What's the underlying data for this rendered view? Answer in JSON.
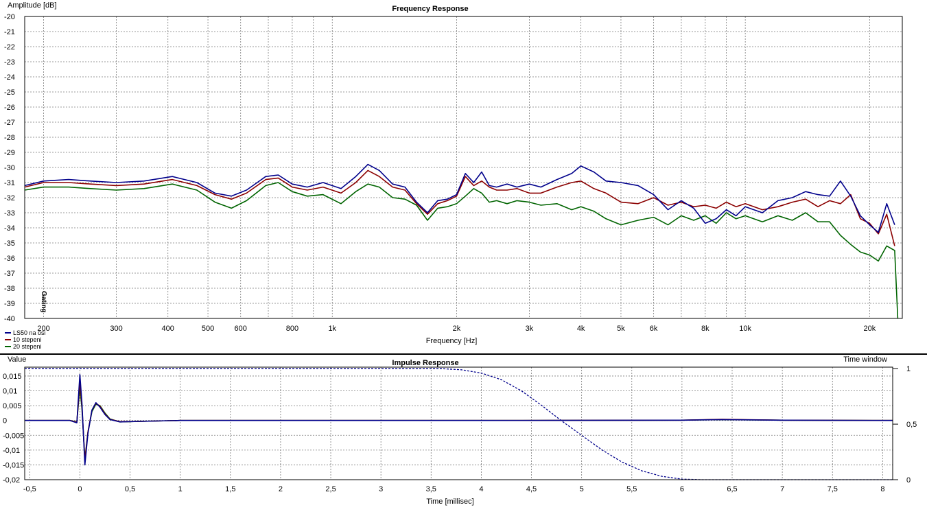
{
  "chart_data": [
    {
      "type": "line",
      "title": "Frequency Response",
      "ylabel": "Amplitude [dB]",
      "xlabel": "Frequency [Hz]",
      "xscale": "log",
      "xlim": [
        180,
        24000
      ],
      "ylim": [
        -40,
        -20
      ],
      "yticks": [
        "-20",
        "-21",
        "-22",
        "-23",
        "-24",
        "-25",
        "-26",
        "-27",
        "-28",
        "-29",
        "-30",
        "-31",
        "-32",
        "-33",
        "-34",
        "-35",
        "-36",
        "-37",
        "-38",
        "-39",
        "-40"
      ],
      "xticks": [
        {
          "v": 200,
          "t": "200"
        },
        {
          "v": 300,
          "t": "300"
        },
        {
          "v": 400,
          "t": "400"
        },
        {
          "v": 500,
          "t": "500"
        },
        {
          "v": 600,
          "t": "600"
        },
        {
          "v": 800,
          "t": "800"
        },
        {
          "v": 1000,
          "t": "1k"
        },
        {
          "v": 2000,
          "t": "2k"
        },
        {
          "v": 3000,
          "t": "3k"
        },
        {
          "v": 4000,
          "t": "4k"
        },
        {
          "v": 5000,
          "t": "5k"
        },
        {
          "v": 6000,
          "t": "6k"
        },
        {
          "v": 8000,
          "t": "8k"
        },
        {
          "v": 10000,
          "t": "10k"
        },
        {
          "v": 20000,
          "t": "20k"
        }
      ],
      "grid": true,
      "legend_position": "bottom-left",
      "gating_label": "Gating",
      "series": [
        {
          "name": "LS50 na osi",
          "color": "#00008b",
          "x": [
            180,
            200,
            230,
            260,
            300,
            350,
            410,
            470,
            520,
            570,
            620,
            690,
            740,
            800,
            870,
            950,
            1050,
            1140,
            1220,
            1300,
            1400,
            1500,
            1600,
            1700,
            1800,
            1900,
            2000,
            2100,
            2200,
            2300,
            2400,
            2500,
            2650,
            2800,
            3000,
            3200,
            3500,
            3800,
            4000,
            4300,
            4600,
            5000,
            5500,
            6000,
            6500,
            7000,
            7500,
            8000,
            8500,
            9000,
            9500,
            10000,
            11000,
            12000,
            13000,
            14000,
            15000,
            16000,
            17000,
            18000,
            19000,
            20000,
            21000,
            22000,
            23000
          ],
          "y": [
            -31.2,
            -30.9,
            -30.8,
            -30.9,
            -31.0,
            -30.9,
            -30.6,
            -31.0,
            -31.7,
            -31.9,
            -31.5,
            -30.6,
            -30.5,
            -31.1,
            -31.3,
            -31.0,
            -31.4,
            -30.6,
            -29.8,
            -30.2,
            -31.1,
            -31.3,
            -32.3,
            -33.0,
            -32.2,
            -32.1,
            -31.8,
            -30.4,
            -31.0,
            -30.3,
            -31.2,
            -31.3,
            -31.1,
            -31.3,
            -31.1,
            -31.3,
            -30.8,
            -30.4,
            -29.9,
            -30.3,
            -30.9,
            -31.0,
            -31.2,
            -31.8,
            -32.8,
            -32.2,
            -32.7,
            -33.7,
            -33.4,
            -32.8,
            -33.2,
            -32.6,
            -33.0,
            -32.2,
            -32.0,
            -31.6,
            -31.8,
            -31.9,
            -30.9,
            -31.9,
            -33.2,
            -33.8,
            -34.3,
            -32.4,
            -33.8
          ]
        },
        {
          "name": "10 stepeni",
          "color": "#8b0000",
          "x": [
            180,
            200,
            230,
            260,
            300,
            350,
            410,
            470,
            520,
            570,
            620,
            690,
            740,
            800,
            870,
            950,
            1050,
            1140,
            1220,
            1300,
            1400,
            1500,
            1600,
            1700,
            1800,
            1900,
            2000,
            2100,
            2200,
            2300,
            2400,
            2500,
            2650,
            2800,
            3000,
            3200,
            3500,
            3800,
            4000,
            4300,
            4600,
            5000,
            5500,
            6000,
            6500,
            7000,
            7500,
            8000,
            8500,
            9000,
            9500,
            10000,
            11000,
            12000,
            13000,
            14000,
            15000,
            16000,
            17000,
            18000,
            19000,
            20000,
            21000,
            22000,
            23000
          ],
          "y": [
            -31.3,
            -31.0,
            -31.0,
            -31.1,
            -31.2,
            -31.1,
            -30.8,
            -31.2,
            -31.8,
            -32.1,
            -31.7,
            -30.8,
            -30.7,
            -31.3,
            -31.5,
            -31.3,
            -31.7,
            -31.0,
            -30.2,
            -30.6,
            -31.3,
            -31.5,
            -32.4,
            -33.1,
            -32.4,
            -32.2,
            -31.9,
            -30.6,
            -31.2,
            -30.9,
            -31.3,
            -31.5,
            -31.5,
            -31.4,
            -31.7,
            -31.7,
            -31.3,
            -31.0,
            -30.9,
            -31.4,
            -31.7,
            -32.3,
            -32.4,
            -32.0,
            -32.5,
            -32.3,
            -32.6,
            -32.5,
            -32.7,
            -32.3,
            -32.6,
            -32.4,
            -32.8,
            -32.6,
            -32.3,
            -32.1,
            -32.6,
            -32.2,
            -32.4,
            -31.8,
            -33.4,
            -33.7,
            -34.4,
            -33.1,
            -35.2
          ]
        },
        {
          "name": "20 stepeni",
          "color": "#006400",
          "x": [
            180,
            200,
            230,
            260,
            300,
            350,
            410,
            470,
            520,
            570,
            620,
            690,
            740,
            800,
            870,
            950,
            1050,
            1140,
            1220,
            1300,
            1400,
            1500,
            1600,
            1700,
            1800,
            1900,
            2000,
            2100,
            2200,
            2300,
            2400,
            2500,
            2650,
            2800,
            3000,
            3200,
            3500,
            3800,
            4000,
            4300,
            4600,
            5000,
            5500,
            6000,
            6500,
            7000,
            7500,
            8000,
            8500,
            9000,
            9500,
            10000,
            11000,
            12000,
            13000,
            14000,
            15000,
            16000,
            17000,
            18000,
            19000,
            20000,
            21000,
            22000,
            23000,
            23400
          ],
          "y": [
            -31.5,
            -31.3,
            -31.3,
            -31.4,
            -31.5,
            -31.4,
            -31.1,
            -31.5,
            -32.3,
            -32.7,
            -32.2,
            -31.2,
            -31.0,
            -31.6,
            -31.9,
            -31.8,
            -32.4,
            -31.6,
            -31.1,
            -31.3,
            -32.0,
            -32.1,
            -32.5,
            -33.5,
            -32.7,
            -32.6,
            -32.4,
            -31.9,
            -31.4,
            -31.7,
            -32.3,
            -32.2,
            -32.4,
            -32.2,
            -32.3,
            -32.5,
            -32.4,
            -32.8,
            -32.6,
            -32.9,
            -33.4,
            -33.8,
            -33.5,
            -33.3,
            -33.8,
            -33.2,
            -33.5,
            -33.2,
            -33.7,
            -33.0,
            -33.4,
            -33.2,
            -33.6,
            -33.2,
            -33.5,
            -33.0,
            -33.6,
            -33.6,
            -34.5,
            -35.1,
            -35.6,
            -35.8,
            -36.2,
            -35.2,
            -35.5,
            -40.0
          ]
        }
      ]
    },
    {
      "type": "line",
      "title": "Impulse Response",
      "ylabel": "Value",
      "y2label": "Time window",
      "xlabel": "Time [millisec]",
      "xlim": [
        -0.55,
        8.1
      ],
      "ylim": [
        -0.02,
        0.018
      ],
      "y2lim": [
        0,
        1
      ],
      "xticks": [
        {
          "v": -0.5,
          "t": "-0,5"
        },
        {
          "v": 0,
          "t": "0"
        },
        {
          "v": 0.5,
          "t": "0,5"
        },
        {
          "v": 1,
          "t": "1"
        },
        {
          "v": 1.5,
          "t": "1,5"
        },
        {
          "v": 2,
          "t": "2"
        },
        {
          "v": 2.5,
          "t": "2,5"
        },
        {
          "v": 3,
          "t": "3"
        },
        {
          "v": 3.5,
          "t": "3,5"
        },
        {
          "v": 4,
          "t": "4"
        },
        {
          "v": 4.5,
          "t": "4,5"
        },
        {
          "v": 5,
          "t": "5"
        },
        {
          "v": 5.5,
          "t": "5,5"
        },
        {
          "v": 6,
          "t": "6"
        },
        {
          "v": 6.5,
          "t": "6,5"
        },
        {
          "v": 7,
          "t": "7"
        },
        {
          "v": 7.5,
          "t": "7,5"
        },
        {
          "v": 8,
          "t": "8"
        }
      ],
      "yticks": [
        {
          "v": 0.015,
          "t": "0,015"
        },
        {
          "v": 0.01,
          "t": "0,01"
        },
        {
          "v": 0.005,
          "t": "0,005"
        },
        {
          "v": 0,
          "t": "0"
        },
        {
          "v": -0.005,
          "t": "-0,005"
        },
        {
          "v": -0.01,
          "t": "-0,01"
        },
        {
          "v": -0.015,
          "t": "-0,015"
        },
        {
          "v": -0.02,
          "t": "-0,02"
        }
      ],
      "y2ticks": [
        {
          "v": 1,
          "t": "1"
        },
        {
          "v": 0.5,
          "t": "0,5"
        },
        {
          "v": 0,
          "t": "0"
        }
      ],
      "grid": true,
      "series": [
        {
          "name": "20 stepeni",
          "color": "#006400",
          "x": [
            -0.55,
            -0.1,
            -0.03,
            0.0,
            0.02,
            0.05,
            0.08,
            0.12,
            0.16,
            0.2,
            0.25,
            0.3,
            0.4,
            0.6,
            1.0,
            2.0,
            4.0,
            6.0,
            6.4,
            7.0,
            8.1
          ],
          "y": [
            0,
            0,
            -0.0005,
            0.011,
            0.004,
            -0.013,
            -0.004,
            0.003,
            0.0055,
            0.005,
            0.0025,
            0.0005,
            -0.0005,
            -0.0003,
            0,
            0,
            0,
            0.0001,
            0.0003,
            0.0001,
            0
          ]
        },
        {
          "name": "10 stepeni",
          "color": "#8b0000",
          "x": [
            -0.55,
            -0.1,
            -0.03,
            0.0,
            0.02,
            0.05,
            0.08,
            0.12,
            0.16,
            0.2,
            0.25,
            0.3,
            0.4,
            0.6,
            1.0,
            2.0,
            4.0,
            6.0,
            6.4,
            7.0,
            8.1
          ],
          "y": [
            0,
            0,
            -0.0006,
            0.013,
            0.005,
            -0.0135,
            -0.004,
            0.0035,
            0.0058,
            0.0048,
            0.0022,
            0.0004,
            -0.0004,
            -0.0003,
            0,
            0,
            0,
            0.0001,
            0.0004,
            0.0001,
            0
          ]
        },
        {
          "name": "LS50 na osi",
          "color": "#00008b",
          "x": [
            -0.55,
            -0.1,
            -0.03,
            0.0,
            0.02,
            0.05,
            0.08,
            0.12,
            0.16,
            0.2,
            0.25,
            0.3,
            0.4,
            0.6,
            1.0,
            2.0,
            4.0,
            6.0,
            6.4,
            7.0,
            8.1
          ],
          "y": [
            0,
            0,
            -0.0008,
            0.0155,
            0.006,
            -0.015,
            -0.0045,
            0.0035,
            0.006,
            0.0045,
            0.002,
            0.0003,
            -0.0005,
            -0.0003,
            0,
            0,
            0,
            0.0001,
            0.0003,
            0.0001,
            0
          ]
        },
        {
          "name": "Time window",
          "color": "#00008b",
          "dashed": true,
          "axis": "y2",
          "x": [
            -0.55,
            3.6,
            3.8,
            4.0,
            4.2,
            4.4,
            4.6,
            4.8,
            5.0,
            5.2,
            5.4,
            5.6,
            5.8,
            6.0,
            6.2,
            8.1
          ],
          "y": [
            1,
            1,
            0.99,
            0.96,
            0.9,
            0.8,
            0.67,
            0.53,
            0.4,
            0.27,
            0.16,
            0.08,
            0.03,
            0.005,
            0,
            0
          ]
        }
      ]
    }
  ]
}
